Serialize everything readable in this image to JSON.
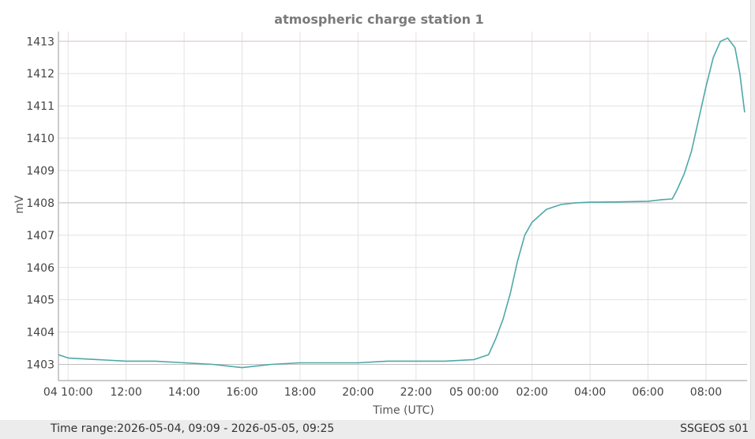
{
  "chart_data": {
    "type": "line",
    "title": "atmospheric charge station 1",
    "xlabel": "Time (UTC)",
    "ylabel": "mV",
    "ylim": [
      1402.5,
      1413.3
    ],
    "yticks": [
      1403,
      1404,
      1405,
      1406,
      1407,
      1408,
      1409,
      1410,
      1411,
      1412,
      1413
    ],
    "xlim": [
      "2026-05-04 09:40",
      "2026-05-05 09:25"
    ],
    "xticks": [
      {
        "t": "2026-05-04 10:00",
        "label": "04 10:00"
      },
      {
        "t": "2026-05-04 12:00",
        "label": "12:00"
      },
      {
        "t": "2026-05-04 14:00",
        "label": "14:00"
      },
      {
        "t": "2026-05-04 16:00",
        "label": "16:00"
      },
      {
        "t": "2026-05-04 18:00",
        "label": "18:00"
      },
      {
        "t": "2026-05-04 20:00",
        "label": "20:00"
      },
      {
        "t": "2026-05-04 22:00",
        "label": "22:00"
      },
      {
        "t": "2026-05-05 00:00",
        "label": "05 00:00"
      },
      {
        "t": "2026-05-05 02:00",
        "label": "02:00"
      },
      {
        "t": "2026-05-05 04:00",
        "label": "04:00"
      },
      {
        "t": "2026-05-05 06:00",
        "label": "06:00"
      },
      {
        "t": "2026-05-05 08:00",
        "label": "08:00"
      }
    ],
    "reference_lines": [
      1403,
      1408,
      1413
    ],
    "grid": true,
    "series": [
      {
        "color": "#4ea8a8",
        "x": [
          "2026-05-04 09:40",
          "2026-05-04 10:00",
          "2026-05-04 11:00",
          "2026-05-04 12:00",
          "2026-05-04 13:00",
          "2026-05-04 14:00",
          "2026-05-04 15:00",
          "2026-05-04 15:30",
          "2026-05-04 16:00",
          "2026-05-04 16:30",
          "2026-05-04 17:00",
          "2026-05-04 18:00",
          "2026-05-04 19:00",
          "2026-05-04 20:00",
          "2026-05-04 21:00",
          "2026-05-04 22:00",
          "2026-05-04 23:00",
          "2026-05-05 00:00",
          "2026-05-05 00:30",
          "2026-05-05 00:45",
          "2026-05-05 01:00",
          "2026-05-05 01:15",
          "2026-05-05 01:30",
          "2026-05-05 01:45",
          "2026-05-05 02:00",
          "2026-05-05 02:30",
          "2026-05-05 03:00",
          "2026-05-05 03:30",
          "2026-05-05 04:00",
          "2026-05-05 05:00",
          "2026-05-05 06:00",
          "2026-05-05 06:30",
          "2026-05-05 06:50",
          "2026-05-05 07:00",
          "2026-05-05 07:15",
          "2026-05-05 07:30",
          "2026-05-05 07:45",
          "2026-05-05 08:00",
          "2026-05-05 08:15",
          "2026-05-05 08:30",
          "2026-05-05 08:45",
          "2026-05-05 09:00",
          "2026-05-05 09:10",
          "2026-05-05 09:20"
        ],
        "y": [
          1403.3,
          1403.2,
          1403.15,
          1403.1,
          1403.1,
          1403.05,
          1403.0,
          1402.95,
          1402.9,
          1402.95,
          1403.0,
          1403.05,
          1403.05,
          1403.05,
          1403.1,
          1403.1,
          1403.1,
          1403.15,
          1403.3,
          1403.8,
          1404.4,
          1405.2,
          1406.2,
          1407.0,
          1407.4,
          1407.8,
          1407.95,
          1408.0,
          1408.02,
          1408.03,
          1408.05,
          1408.1,
          1408.12,
          1408.4,
          1408.9,
          1409.6,
          1410.6,
          1411.6,
          1412.5,
          1413.0,
          1413.1,
          1412.8,
          1412.0,
          1410.8
        ]
      }
    ]
  },
  "footer": {
    "time_range": "Time range:2026-05-04, 09:09 - 2026-05-05, 09:25",
    "device": "SSGEOS s01"
  }
}
